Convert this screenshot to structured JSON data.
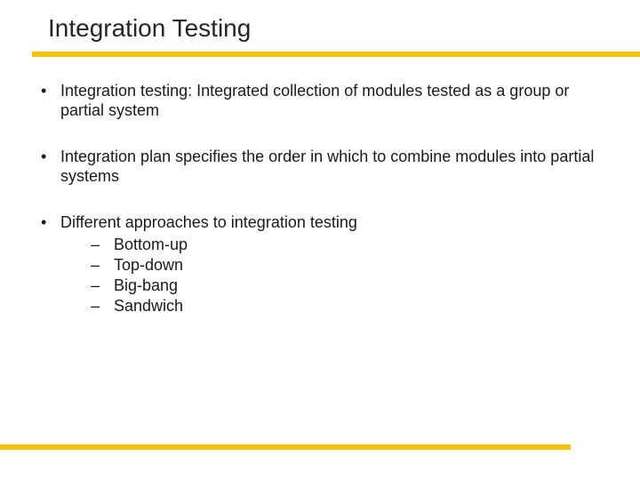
{
  "title": "Integration Testing",
  "divider_color": "#f5c400",
  "text_color": "#1a1a1a",
  "title_color": "#262626",
  "background_color": "#ffffff",
  "title_fontsize": 28,
  "body_fontsize": 18,
  "bullets": [
    {
      "text": "Integration testing: Integrated collection of modules tested as a group or partial system",
      "subitems": []
    },
    {
      "text": "Integration plan specifies the order in which to combine modules into partial systems",
      "subitems": []
    },
    {
      "text": "Different approaches to integration testing",
      "subitems": [
        "Bottom-up",
        "Top-down",
        "Big-bang",
        "Sandwich"
      ]
    }
  ]
}
